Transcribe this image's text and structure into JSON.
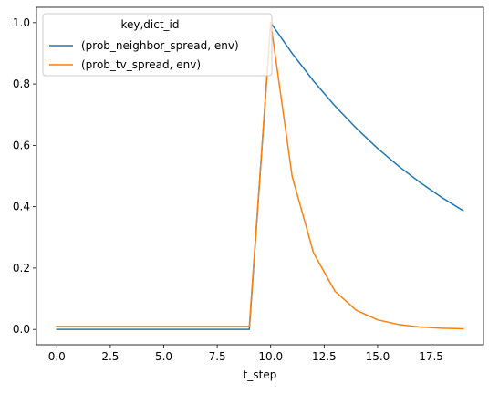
{
  "chart_data": {
    "type": "line",
    "title": "",
    "xlabel": "t_step",
    "ylabel": "",
    "xlim": [
      -0.95,
      19.95
    ],
    "ylim": [
      -0.05,
      1.05
    ],
    "grid": false,
    "x_ticks": [
      0.0,
      2.5,
      5.0,
      7.5,
      10.0,
      12.5,
      15.0,
      17.5
    ],
    "x_tick_labels": [
      "0.0",
      "2.5",
      "5.0",
      "7.5",
      "10.0",
      "12.5",
      "15.0",
      "17.5"
    ],
    "y_ticks": [
      0.0,
      0.2,
      0.4,
      0.6,
      0.8,
      1.0
    ],
    "y_tick_labels": [
      "0.0",
      "0.2",
      "0.4",
      "0.6",
      "0.8",
      "1.0"
    ],
    "legend": {
      "title": "key,dict_id",
      "placement": "top-left"
    },
    "x": [
      0,
      1,
      2,
      3,
      4,
      5,
      6,
      7,
      8,
      9,
      10,
      11,
      12,
      13,
      14,
      15,
      16,
      17,
      18,
      19
    ],
    "series": [
      {
        "name": "(prob_neighbor_spread, env)",
        "color": "#1f77b4",
        "values": [
          0,
          0,
          0,
          0,
          0,
          0,
          0,
          0,
          0,
          0,
          1.0,
          0.9,
          0.81,
          0.729,
          0.656,
          0.59,
          0.531,
          0.478,
          0.43,
          0.387
        ]
      },
      {
        "name": "(prob_tv_spread, env)",
        "color": "#ff7f0e",
        "values": [
          0.01,
          0.01,
          0.01,
          0.01,
          0.01,
          0.01,
          0.01,
          0.01,
          0.01,
          0.01,
          1.0,
          0.5,
          0.25,
          0.125,
          0.0625,
          0.03125,
          0.0156,
          0.0078,
          0.0039,
          0.002
        ]
      }
    ]
  }
}
